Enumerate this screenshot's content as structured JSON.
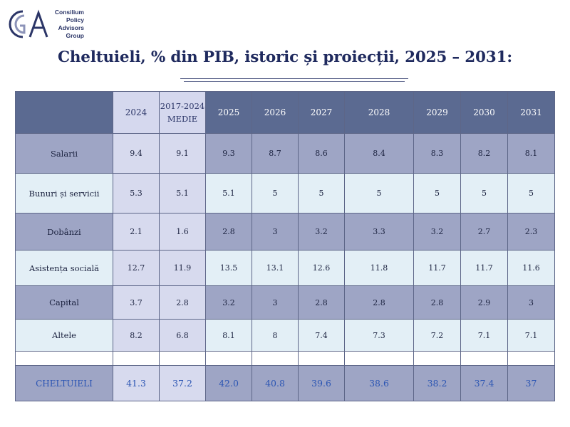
{
  "logo": {
    "mark": "CGA",
    "lines": [
      "Consilium",
      "Policy",
      "Advisors",
      "Group"
    ]
  },
  "title": "Cheltuieli, % din PIB, istoric și proiecții, 2025 – 2031:",
  "colors": {
    "header_bg": "#5b6a91",
    "row_dark": "#9ea5c5",
    "row_light": "#e3eff6",
    "historic_bg": "#d7daee",
    "title": "#1f2a5e",
    "total_text": "#2b55b3"
  },
  "chart_data": {
    "type": "table",
    "title": "Cheltuieli, % din PIB, istoric și proiecții, 2025 – 2031:",
    "columns": [
      "2024",
      "2017-2024 MEDIE",
      "2025",
      "2026",
      "2027",
      "2028",
      "2029",
      "2030",
      "2031"
    ],
    "column_labels": [
      [
        "2024"
      ],
      [
        "2017-2024",
        "MEDIE"
      ],
      [
        "2025"
      ],
      [
        "2026"
      ],
      [
        "2027"
      ],
      [
        "2028"
      ],
      [
        "2029"
      ],
      [
        "2030"
      ],
      [
        "2031"
      ]
    ],
    "rows": [
      {
        "label": "Salarii",
        "values": [
          "9.4",
          "9.1",
          "9.3",
          "8.7",
          "8.6",
          "8.4",
          "8.3",
          "8.2",
          "8.1"
        ]
      },
      {
        "label": "Bunuri și servicii",
        "values": [
          "5.3",
          "5.1",
          "5.1",
          "5",
          "5",
          "5",
          "5",
          "5",
          "5"
        ]
      },
      {
        "label": "Dobânzi",
        "values": [
          "2.1",
          "1.6",
          "2.8",
          "3",
          "3.2",
          "3.3",
          "3.2",
          "2.7",
          "2.3"
        ]
      },
      {
        "label": "Asistența socială",
        "values": [
          "12.7",
          "11.9",
          "13.5",
          "13.1",
          "12.6",
          "11.8",
          "11.7",
          "11.7",
          "11.6"
        ]
      },
      {
        "label": "Capital",
        "values": [
          "3.7",
          "2.8",
          "3.2",
          "3",
          "2.8",
          "2.8",
          "2.8",
          "2.9",
          "3"
        ]
      },
      {
        "label": "Altele",
        "values": [
          "8.2",
          "6.8",
          "8.1",
          "8",
          "7.4",
          "7.3",
          "7.2",
          "7.1",
          "7.1"
        ]
      }
    ],
    "total": {
      "label": "CHELTUIELI",
      "values": [
        "41.3",
        "37.2",
        "42.0",
        "40.8",
        "39.6",
        "38.6",
        "38.2",
        "37.4",
        "37"
      ]
    }
  }
}
